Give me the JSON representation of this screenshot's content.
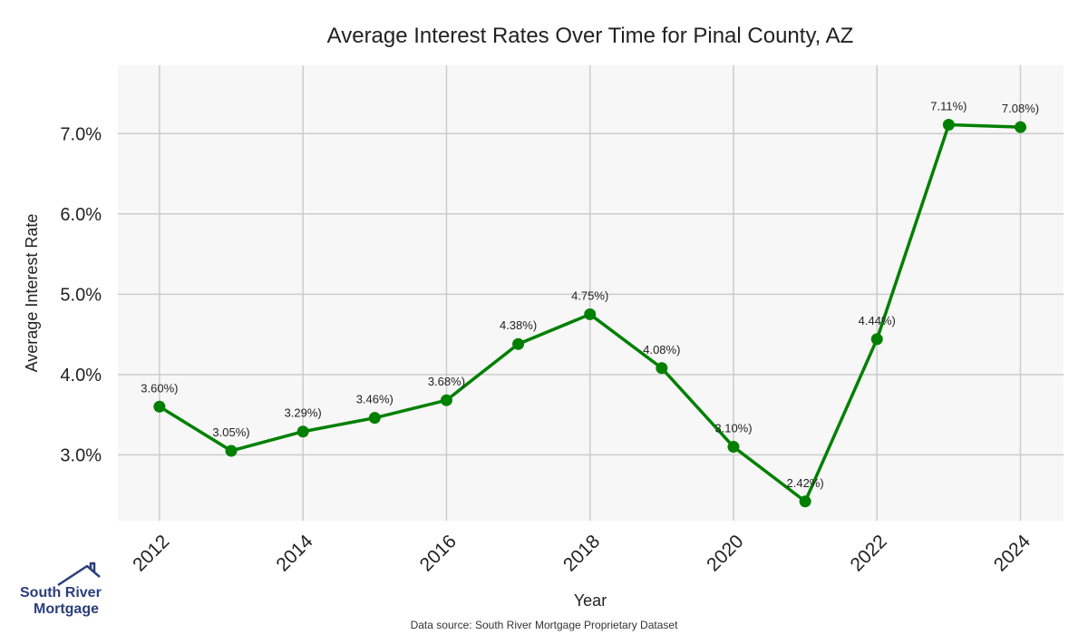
{
  "chart_data": {
    "type": "line",
    "title": "Average Interest Rates Over Time for Pinal County, AZ",
    "xlabel": "Year",
    "ylabel": "Average Interest Rate",
    "x": [
      2012,
      2013,
      2014,
      2015,
      2016,
      2017,
      2018,
      2019,
      2020,
      2021,
      2022,
      2023,
      2024
    ],
    "series": [
      {
        "values": [
          3.6,
          3.05,
          3.29,
          3.46,
          3.68,
          4.38,
          4.75,
          4.08,
          3.1,
          2.42,
          4.44,
          7.11,
          7.08
        ]
      }
    ],
    "data_labels": [
      "3.60%)",
      "3.05%)",
      "3.29%)",
      "3.46%)",
      "3.68%)",
      "4.38%)",
      "4.75%)",
      "4.08%)",
      "3.10%)",
      "2.42%)",
      "4.44%)",
      "7.11%)",
      "7.08%)"
    ],
    "x_ticks": [
      2012,
      2014,
      2016,
      2018,
      2020,
      2022,
      2024
    ],
    "y_ticks": [
      3.0,
      4.0,
      5.0,
      6.0,
      7.0
    ],
    "y_tick_labels": [
      "3.0%",
      "4.0%",
      "5.0%",
      "6.0%",
      "7.0%"
    ],
    "xlim": [
      2011.42,
      2024.6
    ],
    "ylim": [
      2.18,
      7.85
    ],
    "grid": true,
    "line_color": "#008000",
    "plot_background": "#f7f7f7",
    "grid_color": "#cccccc"
  },
  "source_note": "Data source: South River Mortgage Proprietary Dataset",
  "logo": {
    "line1": "South River",
    "line2": "Mortgage",
    "icon": "house-roof-icon",
    "color": "#2c3e7a"
  }
}
